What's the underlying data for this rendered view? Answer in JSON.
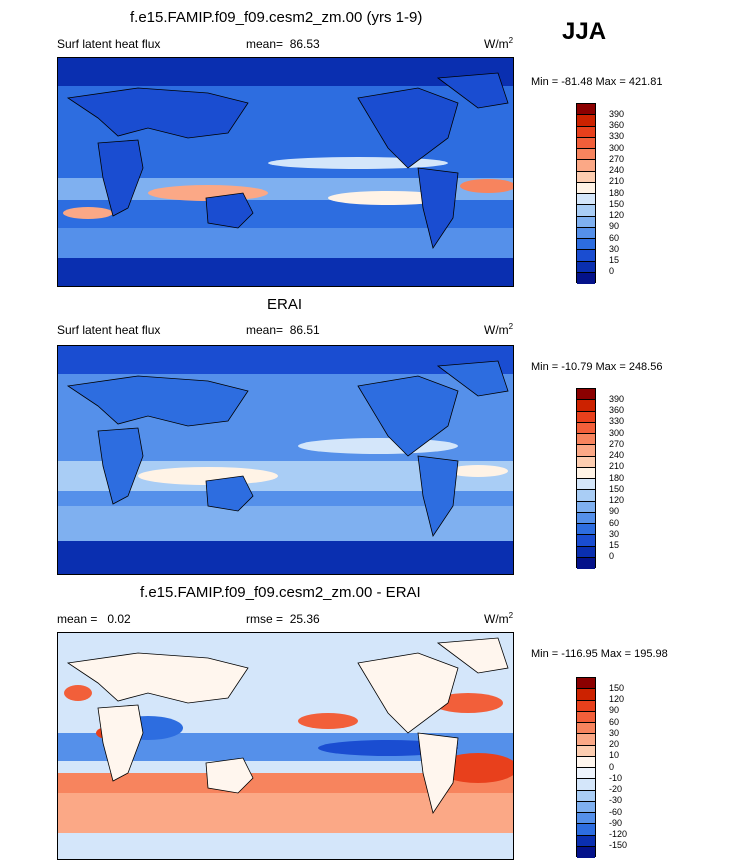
{
  "season": "JJA",
  "panels": [
    {
      "title": "f.e15.FAMIP.f09_f09.cesm2_zm.00 (yrs 1-9)",
      "left_label": "Surf latent heat flux",
      "stat_label": "mean=",
      "stat_value": "86.53",
      "units_base": "W/m",
      "units_sup": "2",
      "minmax": "Min = -81.48 Max = 421.81"
    },
    {
      "title": "ERAI",
      "left_label": "Surf latent heat flux",
      "stat_label": "mean=",
      "stat_value": "86.51",
      "units_base": "W/m",
      "units_sup": "2",
      "minmax": "Min = -10.79 Max = 248.56"
    },
    {
      "title": "f.e15.FAMIP.f09_f09.cesm2_zm.00 - ERAI",
      "left_label": "mean =   0.02",
      "stat_label": "rmse =",
      "stat_value": "25.36",
      "units_base": "W/m",
      "units_sup": "2",
      "minmax": "Min = -116.95 Max = 195.98"
    }
  ],
  "chart_data": [
    {
      "type": "heatmap",
      "title": "f.e15.FAMIP.f09_f09.cesm2_zm.00 (yrs 1-9)",
      "variable": "Surf latent heat flux",
      "units": "W/m2",
      "mean": 86.53,
      "min": -81.48,
      "max": 421.81,
      "colorbar_levels": [
        390,
        360,
        330,
        300,
        270,
        240,
        210,
        180,
        150,
        120,
        90,
        60,
        30,
        15,
        0
      ],
      "colorbar_colors": [
        "#8b0000",
        "#cc2200",
        "#e8401c",
        "#f25f3a",
        "#f7845e",
        "#fba886",
        "#fdcdb0",
        "#fff3e6",
        "#d4e6fa",
        "#a9cdf5",
        "#7fb0f0",
        "#5590ea",
        "#2d6de0",
        "#1a4dd1",
        "#0a2fb0",
        "#04128a"
      ]
    },
    {
      "type": "heatmap",
      "title": "ERAI",
      "variable": "Surf latent heat flux",
      "units": "W/m2",
      "mean": 86.51,
      "min": -10.79,
      "max": 248.56,
      "colorbar_levels": [
        390,
        360,
        330,
        300,
        270,
        240,
        210,
        180,
        150,
        120,
        90,
        60,
        30,
        15,
        0
      ],
      "colorbar_colors": [
        "#8b0000",
        "#cc2200",
        "#e8401c",
        "#f25f3a",
        "#f7845e",
        "#fba886",
        "#fdcdb0",
        "#fff3e6",
        "#d4e6fa",
        "#a9cdf5",
        "#7fb0f0",
        "#5590ea",
        "#2d6de0",
        "#1a4dd1",
        "#0a2fb0",
        "#04128a"
      ]
    },
    {
      "type": "heatmap",
      "title": "f.e15.FAMIP.f09_f09.cesm2_zm.00 - ERAI",
      "units": "W/m2",
      "mean": 0.02,
      "rmse": 25.36,
      "min": -116.95,
      "max": 195.98,
      "colorbar_levels": [
        150,
        120,
        90,
        60,
        30,
        20,
        10,
        0,
        -10,
        -20,
        -30,
        -60,
        -90,
        -120,
        -150
      ],
      "colorbar_colors": [
        "#8b0000",
        "#cc2200",
        "#e8401c",
        "#f25f3a",
        "#f7845e",
        "#fba886",
        "#fdcdb0",
        "#fff6ee",
        "#eef4fd",
        "#d4e6fa",
        "#a9cdf5",
        "#7fb0f0",
        "#5590ea",
        "#2d6de0",
        "#0a2fb0",
        "#04128a"
      ]
    }
  ]
}
